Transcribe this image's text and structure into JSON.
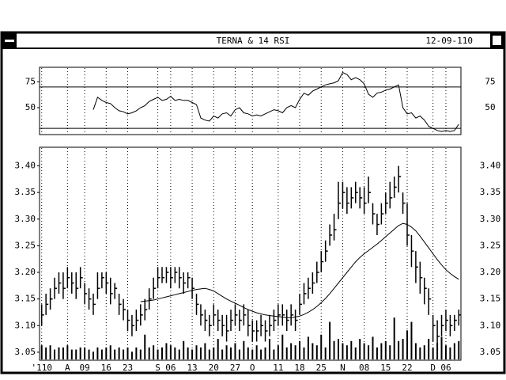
{
  "window": {
    "title": "TERNA & 14 RSI",
    "date": "12-09-110"
  },
  "chart_data": [
    {
      "type": "line",
      "color": "#000000",
      "ylim": [
        24,
        89
      ],
      "yticks": [
        50,
        75
      ],
      "reference_lines": [
        30,
        70
      ],
      "values": [
        null,
        null,
        null,
        null,
        null,
        null,
        null,
        null,
        null,
        null,
        null,
        null,
        48,
        60,
        57,
        55,
        54,
        50,
        47,
        46,
        44,
        45,
        47,
        50,
        52,
        56,
        58,
        60,
        57,
        58,
        61,
        57,
        58,
        57,
        57,
        55,
        53,
        40,
        38,
        37,
        42,
        40,
        44,
        45,
        42,
        48,
        50,
        45,
        44,
        42,
        43,
        42,
        44,
        46,
        48,
        47,
        45,
        50,
        52,
        50,
        58,
        64,
        62,
        66,
        68,
        70,
        72,
        73,
        74,
        76,
        84,
        82,
        77,
        79,
        77,
        73,
        63,
        60,
        64,
        65,
        67,
        68,
        70,
        72,
        50,
        44,
        45,
        40,
        42,
        38,
        32,
        30,
        28,
        27,
        28,
        27,
        28,
        34
      ]
    },
    {
      "type": "hlc",
      "color": "#000000",
      "grid": true,
      "ylim": [
        3.035,
        3.435
      ],
      "yticks": [
        3.05,
        {
          "value": 3.1,
          "label": "3.10"
        },
        3.15,
        {
          "value": 3.2,
          "label": "3.20"
        },
        3.25,
        {
          "value": 3.3,
          "label": "3.30"
        },
        3.35,
        {
          "value": 3.4,
          "label": "3.40"
        }
      ],
      "y2lim": [
        0,
        100
      ],
      "categories": [
        "'110",
        null,
        null,
        null,
        null,
        null,
        "A",
        null,
        null,
        null,
        "09",
        null,
        null,
        null,
        null,
        "16",
        null,
        null,
        null,
        null,
        "23",
        null,
        null,
        null,
        null,
        null,
        null,
        "S",
        null,
        null,
        "06",
        null,
        null,
        null,
        null,
        "13",
        null,
        null,
        null,
        null,
        "20",
        null,
        null,
        null,
        null,
        "27",
        null,
        null,
        null,
        "O",
        null,
        null,
        null,
        null,
        null,
        "11",
        null,
        null,
        null,
        null,
        "18",
        null,
        null,
        null,
        null,
        "25",
        null,
        null,
        null,
        null,
        "N",
        null,
        null,
        null,
        null,
        "08",
        null,
        null,
        null,
        null,
        "15",
        null,
        null,
        null,
        null,
        "22",
        null,
        null,
        null,
        null,
        null,
        "D",
        null,
        null,
        "06",
        null,
        null,
        null
      ],
      "high": [
        3.14,
        3.16,
        3.17,
        3.19,
        3.2,
        3.2,
        3.21,
        3.2,
        3.2,
        3.21,
        3.18,
        3.17,
        3.16,
        3.2,
        3.2,
        3.2,
        3.19,
        3.18,
        3.16,
        3.15,
        3.13,
        3.12,
        3.13,
        3.14,
        3.15,
        3.17,
        3.19,
        3.21,
        3.21,
        3.21,
        3.21,
        3.21,
        3.21,
        3.2,
        3.2,
        3.19,
        3.16,
        3.14,
        3.13,
        3.12,
        3.14,
        3.13,
        3.12,
        3.12,
        3.13,
        3.14,
        3.13,
        3.14,
        3.13,
        3.11,
        3.11,
        3.12,
        3.11,
        3.12,
        3.13,
        3.14,
        3.14,
        3.13,
        3.14,
        3.13,
        3.16,
        3.18,
        3.19,
        3.2,
        3.22,
        3.24,
        3.26,
        3.29,
        3.31,
        3.37,
        3.37,
        3.36,
        3.36,
        3.37,
        3.36,
        3.36,
        3.38,
        3.33,
        3.31,
        3.33,
        3.35,
        3.37,
        3.38,
        3.4,
        3.35,
        3.33,
        3.27,
        3.24,
        3.22,
        3.19,
        3.17,
        3.12,
        3.11,
        3.12,
        3.13,
        3.12,
        3.12,
        3.13
      ],
      "low": [
        3.1,
        3.12,
        3.13,
        3.15,
        3.16,
        3.15,
        3.17,
        3.16,
        3.15,
        3.17,
        3.14,
        3.13,
        3.12,
        3.15,
        3.17,
        3.16,
        3.14,
        3.15,
        3.12,
        3.11,
        3.09,
        3.08,
        3.09,
        3.1,
        3.11,
        3.13,
        3.15,
        3.17,
        3.18,
        3.18,
        3.17,
        3.18,
        3.17,
        3.16,
        3.17,
        3.15,
        3.12,
        3.1,
        3.09,
        3.08,
        3.1,
        3.09,
        3.08,
        3.07,
        3.09,
        3.1,
        3.09,
        3.1,
        3.08,
        3.07,
        3.07,
        3.08,
        3.07,
        3.08,
        3.09,
        3.1,
        3.1,
        3.09,
        3.1,
        3.09,
        3.12,
        3.14,
        3.15,
        3.16,
        3.18,
        3.2,
        3.22,
        3.25,
        3.26,
        3.3,
        3.32,
        3.31,
        3.32,
        3.33,
        3.32,
        3.31,
        3.33,
        3.29,
        3.27,
        3.29,
        3.31,
        3.32,
        3.34,
        3.35,
        3.31,
        3.25,
        3.21,
        3.18,
        3.16,
        3.14,
        3.12,
        3.07,
        3.06,
        3.08,
        3.09,
        3.08,
        3.09,
        3.1
      ],
      "close": [
        3.12,
        3.14,
        3.15,
        3.17,
        3.18,
        3.17,
        3.19,
        3.18,
        3.17,
        3.19,
        3.16,
        3.15,
        3.14,
        3.17,
        3.19,
        3.18,
        3.16,
        3.17,
        3.14,
        3.13,
        3.11,
        3.1,
        3.11,
        3.12,
        3.13,
        3.15,
        3.17,
        3.19,
        3.19,
        3.2,
        3.19,
        3.2,
        3.19,
        3.18,
        3.19,
        3.17,
        3.14,
        3.12,
        3.11,
        3.1,
        3.12,
        3.11,
        3.1,
        3.09,
        3.11,
        3.12,
        3.11,
        3.12,
        3.1,
        3.09,
        3.09,
        3.1,
        3.09,
        3.1,
        3.11,
        3.12,
        3.12,
        3.11,
        3.12,
        3.11,
        3.14,
        3.16,
        3.17,
        3.18,
        3.2,
        3.22,
        3.24,
        3.27,
        3.28,
        3.33,
        3.35,
        3.33,
        3.34,
        3.35,
        3.34,
        3.33,
        3.35,
        3.31,
        3.29,
        3.31,
        3.33,
        3.34,
        3.36,
        3.38,
        3.33,
        3.27,
        3.24,
        3.21,
        3.19,
        3.17,
        3.15,
        3.1,
        3.08,
        3.1,
        3.11,
        3.1,
        3.11,
        3.12
      ],
      "moving_average": [
        null,
        null,
        null,
        null,
        null,
        null,
        null,
        null,
        null,
        null,
        null,
        null,
        null,
        null,
        null,
        null,
        null,
        null,
        null,
        null,
        null,
        null,
        null,
        3.145,
        3.146,
        3.147,
        3.148,
        3.15,
        3.152,
        3.154,
        3.156,
        3.158,
        3.16,
        3.162,
        3.164,
        3.166,
        3.168,
        3.169,
        3.17,
        3.168,
        3.165,
        3.16,
        3.155,
        3.15,
        3.146,
        3.142,
        3.138,
        3.134,
        3.13,
        3.127,
        3.124,
        3.122,
        3.12,
        3.119,
        3.118,
        3.117,
        3.116,
        3.115,
        3.115,
        3.116,
        3.118,
        3.121,
        3.125,
        3.13,
        3.136,
        3.143,
        3.151,
        3.16,
        3.17,
        3.18,
        3.19,
        3.2,
        3.21,
        3.22,
        3.228,
        3.235,
        3.241,
        3.247,
        3.253,
        3.26,
        3.267,
        3.274,
        3.281,
        3.288,
        3.292,
        3.29,
        3.285,
        3.278,
        3.268,
        3.257,
        3.246,
        3.235,
        3.224,
        3.214,
        3.205,
        3.198,
        3.192,
        3.187
      ],
      "volume": [
        7,
        6,
        7,
        5,
        6,
        6,
        7,
        5,
        5,
        6,
        6,
        5,
        4,
        6,
        5,
        6,
        7,
        5,
        6,
        5,
        6,
        4,
        6,
        5,
        12,
        6,
        7,
        5,
        6,
        8,
        7,
        6,
        5,
        9,
        6,
        5,
        7,
        6,
        8,
        5,
        6,
        10,
        5,
        7,
        6,
        8,
        5,
        9,
        6,
        5,
        7,
        5,
        6,
        10,
        5,
        7,
        12,
        6,
        8,
        7,
        9,
        6,
        11,
        8,
        7,
        12,
        6,
        18,
        9,
        10,
        8,
        7,
        9,
        6,
        10,
        8,
        7,
        11,
        6,
        8,
        9,
        7,
        20,
        9,
        10,
        14,
        18,
        8,
        6,
        7,
        10,
        6,
        8,
        11,
        7,
        6,
        8,
        9
      ]
    }
  ]
}
